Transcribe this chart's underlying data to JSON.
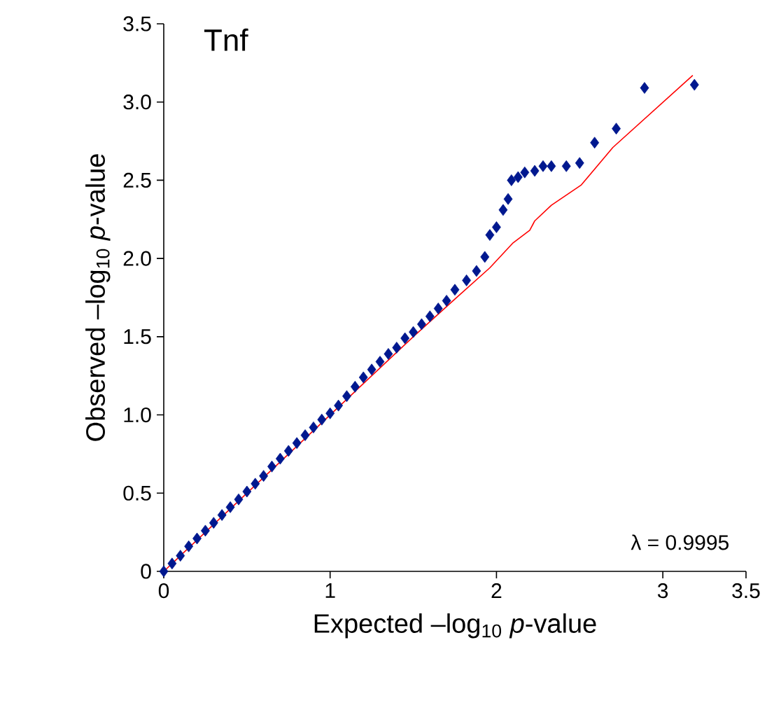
{
  "chart_data": {
    "type": "scatter",
    "title": "Tnf",
    "xlabel": "Expected –log$_{10}$ *p*-value",
    "ylabel": "Observed –log$_{10}$ *p*-value",
    "annotations": [
      "λ = 0.9995"
    ],
    "xlim": [
      0,
      3.5
    ],
    "ylim": [
      0,
      3.5
    ],
    "xticks": [
      0,
      1,
      2,
      3,
      3.5
    ],
    "yticks": [
      0,
      0.5,
      {
        "value": 1,
        "label": "1.0"
      },
      1.5,
      {
        "value": 2,
        "label": "2.0"
      },
      2.5,
      {
        "value": 3,
        "label": "3.0"
      },
      3.5
    ],
    "grid": false,
    "series": [
      {
        "color": "#00188f",
        "marker": "diamond",
        "x": [
          0.0,
          0.05,
          0.1,
          0.15,
          0.2,
          0.25,
          0.3,
          0.35,
          0.4,
          0.45,
          0.5,
          0.55,
          0.6,
          0.65,
          0.7,
          0.75,
          0.8,
          0.85,
          0.9,
          0.95,
          1.0,
          1.05,
          1.1,
          1.15,
          1.2,
          1.25,
          1.3,
          1.35,
          1.4,
          1.45,
          1.5,
          1.55,
          1.6,
          1.65,
          1.7,
          1.75,
          1.82,
          1.88,
          1.93,
          1.96,
          2.0,
          2.04,
          2.07,
          2.09,
          2.13,
          2.17,
          2.23,
          2.28,
          2.33,
          2.42,
          2.5,
          2.59,
          2.72,
          2.89,
          3.19
        ],
        "values": [
          0.0,
          0.05,
          0.1,
          0.16,
          0.21,
          0.26,
          0.31,
          0.36,
          0.41,
          0.46,
          0.51,
          0.56,
          0.61,
          0.67,
          0.72,
          0.77,
          0.82,
          0.87,
          0.92,
          0.97,
          1.01,
          1.06,
          1.12,
          1.18,
          1.24,
          1.29,
          1.34,
          1.39,
          1.43,
          1.49,
          1.53,
          1.58,
          1.63,
          1.68,
          1.73,
          1.8,
          1.86,
          1.92,
          2.01,
          2.15,
          2.2,
          2.31,
          2.38,
          2.5,
          2.52,
          2.55,
          2.56,
          2.59,
          2.59,
          2.59,
          2.61,
          2.74,
          2.83,
          3.09,
          3.11
        ]
      },
      {
        "type": "line",
        "color": "#ff0000",
        "marker": "none",
        "x": [
          0.0,
          0.5,
          1.0,
          1.5,
          1.75,
          1.96,
          2.1,
          2.2,
          2.23,
          2.33,
          2.51,
          2.7,
          3.18
        ],
        "values": [
          0.0,
          0.5,
          1.0,
          1.5,
          1.74,
          1.94,
          2.1,
          2.18,
          2.24,
          2.34,
          2.47,
          2.71,
          3.17
        ]
      }
    ]
  }
}
